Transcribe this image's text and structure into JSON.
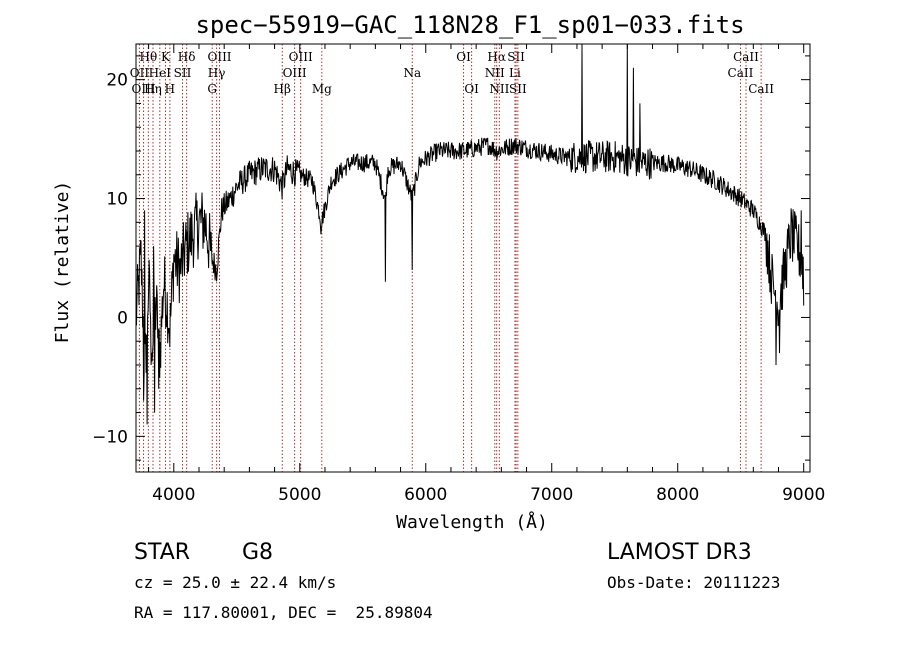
{
  "chart_data": {
    "type": "line",
    "title": "spec−55919−GAC_118N28_F1_sp01−033.fits",
    "xlabel": "Wavelength (Å)",
    "ylabel": "Flux (relative)",
    "xlim": [
      3700,
      9050
    ],
    "ylim": [
      -13,
      23
    ],
    "xticks": [
      4000,
      5000,
      6000,
      7000,
      8000,
      9000
    ],
    "yticks": [
      -10,
      0,
      10,
      20
    ],
    "xtick_labels": [
      "4000",
      "5000",
      "6000",
      "7000",
      "8000",
      "9000"
    ],
    "ytick_labels": [
      "−10",
      "0",
      "10",
      "20"
    ],
    "spectrum_anchors": [
      [
        3700,
        0
      ],
      [
        3740,
        5
      ],
      [
        3770,
        -5
      ],
      [
        3800,
        3
      ],
      [
        3830,
        -2
      ],
      [
        3860,
        1
      ],
      [
        3890,
        -3
      ],
      [
        3920,
        3
      ],
      [
        3950,
        1
      ],
      [
        3970,
        -1
      ],
      [
        4000,
        5
      ],
      [
        4050,
        4
      ],
      [
        4100,
        6
      ],
      [
        4150,
        7
      ],
      [
        4200,
        8
      ],
      [
        4250,
        8
      ],
      [
        4300,
        5
      ],
      [
        4340,
        4
      ],
      [
        4380,
        9
      ],
      [
        4450,
        10
      ],
      [
        4500,
        11
      ],
      [
        4600,
        12
      ],
      [
        4700,
        12.5
      ],
      [
        4800,
        12.5
      ],
      [
        4861,
        11
      ],
      [
        4900,
        12.5
      ],
      [
        5000,
        12
      ],
      [
        5100,
        11.5
      ],
      [
        5172,
        8
      ],
      [
        5250,
        11.5
      ],
      [
        5400,
        13
      ],
      [
        5600,
        13
      ],
      [
        5680,
        10
      ],
      [
        5700,
        12.5
      ],
      [
        5800,
        13
      ],
      [
        5893,
        10
      ],
      [
        5950,
        13
      ],
      [
        6100,
        14
      ],
      [
        6300,
        14
      ],
      [
        6500,
        14.5
      ],
      [
        6563,
        14
      ],
      [
        6700,
        14.5
      ],
      [
        6900,
        14
      ],
      [
        7100,
        13.5
      ],
      [
        7300,
        13.5
      ],
      [
        7500,
        13.5
      ],
      [
        7700,
        13
      ],
      [
        7900,
        13
      ],
      [
        8100,
        12.5
      ],
      [
        8300,
        11.5
      ],
      [
        8500,
        10
      ],
      [
        8600,
        9
      ],
      [
        8700,
        7
      ],
      [
        8750,
        3
      ],
      [
        8800,
        1
      ],
      [
        8850,
        4
      ],
      [
        8900,
        7
      ],
      [
        8950,
        6
      ],
      [
        9000,
        4
      ]
    ],
    "spectrum_features": [
      [
        3760,
        -7
      ],
      [
        3790,
        -9
      ],
      [
        3820,
        -4
      ],
      [
        3850,
        -8
      ],
      [
        3880,
        -6
      ],
      [
        3770,
        9
      ],
      [
        3840,
        6
      ],
      [
        5680,
        3
      ],
      [
        5891,
        4
      ],
      [
        5170,
        7
      ],
      [
        7240,
        23
      ],
      [
        7600,
        23
      ],
      [
        7650,
        21
      ],
      [
        7700,
        18
      ],
      [
        8780,
        -4
      ],
      [
        8810,
        -3
      ],
      [
        8980,
        9
      ],
      [
        9000,
        1
      ]
    ],
    "lines": [
      {
        "label": "Hθ",
        "x": 3798,
        "row": 0
      },
      {
        "label": "K",
        "x": 3934,
        "row": 0
      },
      {
        "label": "Hδ",
        "x": 4102,
        "row": 0
      },
      {
        "label": "OIII",
        "x": 4363,
        "row": 0
      },
      {
        "label": "OIII",
        "x": 5007,
        "row": 0
      },
      {
        "label": "OI",
        "x": 6300,
        "row": 0
      },
      {
        "label": "Hα",
        "x": 6563,
        "row": 0
      },
      {
        "label": "SII",
        "x": 6717,
        "row": 0
      },
      {
        "label": "CaII",
        "x": 8542,
        "row": 0
      },
      {
        "label": "OII",
        "x": 3727,
        "row": 1
      },
      {
        "label": "HeI",
        "x": 3889,
        "row": 1
      },
      {
        "label": "SII",
        "x": 4069,
        "row": 1
      },
      {
        "label": "Hγ",
        "x": 4340,
        "row": 1
      },
      {
        "label": "OIII",
        "x": 4959,
        "row": 1
      },
      {
        "label": "Na",
        "x": 5893,
        "row": 1
      },
      {
        "label": "NII",
        "x": 6548,
        "row": 1
      },
      {
        "label": "Li",
        "x": 6708,
        "row": 1
      },
      {
        "label": "CaII",
        "x": 8498,
        "row": 1
      },
      {
        "label": "OIII",
        "x": 3760,
        "row": 2
      },
      {
        "label": "Hη",
        "x": 3835,
        "row": 2
      },
      {
        "label": "H",
        "x": 3969,
        "row": 2
      },
      {
        "label": "G",
        "x": 4305,
        "row": 2
      },
      {
        "label": "Hβ",
        "x": 4861,
        "row": 2
      },
      {
        "label": "Mg",
        "x": 5175,
        "row": 2
      },
      {
        "label": "OI",
        "x": 6364,
        "row": 2
      },
      {
        "label": "NII",
        "x": 6584,
        "row": 2
      },
      {
        "label": "SII",
        "x": 6731,
        "row": 2
      },
      {
        "label": "CaII",
        "x": 8662,
        "row": 2
      }
    ]
  },
  "info": {
    "class": "STAR",
    "subclass": "G8",
    "survey": "LAMOST DR3",
    "cz": "cz = 25.0 ± 22.4 km/s",
    "obs_date": "Obs-Date: 20111223",
    "radec": "RA = 117.80001, DEC =  25.89804"
  }
}
